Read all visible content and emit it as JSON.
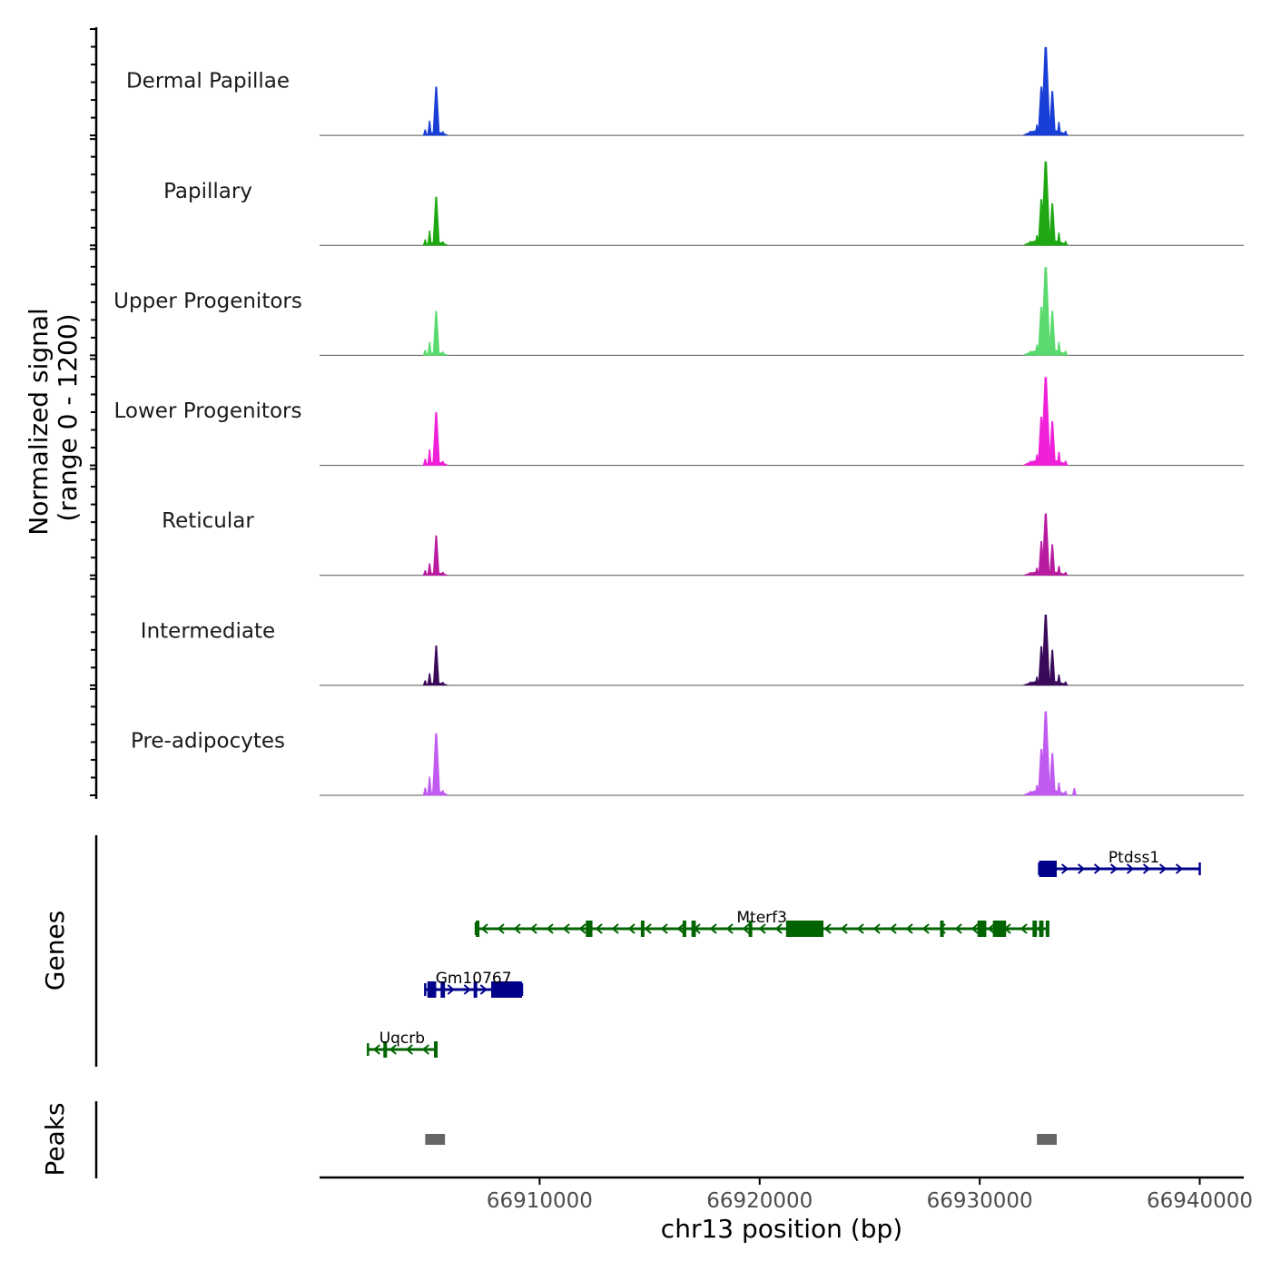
{
  "chart_data": {
    "type": "genome_coverage",
    "x_axis": {
      "title": "chr13 position (bp)",
      "range": [
        66900000,
        66942000
      ],
      "ticks": [
        66910000,
        66920000,
        66930000,
        66940000
      ],
      "tick_labels": [
        "66910000",
        "66920000",
        "66930000",
        "66940000"
      ]
    },
    "coverage_axis_title": [
      "Normalized signal",
      "(range 0 - 1200)"
    ],
    "signal_range": [
      0,
      1200
    ],
    "tracks": [
      {
        "name": "Dermal Papillae",
        "color": "#1a3fd6",
        "peak1_scale": 0.55,
        "peak2_scale": 1.0,
        "extra": []
      },
      {
        "name": "Papillary",
        "color": "#20a814",
        "peak1_scale": 0.55,
        "peak2_scale": 0.95,
        "extra": []
      },
      {
        "name": "Upper Progenitors",
        "color": "#5ada6e",
        "peak1_scale": 0.5,
        "peak2_scale": 1.0,
        "extra": []
      },
      {
        "name": "Lower Progenitors",
        "color": "#f020d8",
        "peak1_scale": 0.6,
        "peak2_scale": 1.0,
        "extra": []
      },
      {
        "name": "Reticular",
        "color": "#b81aa0",
        "peak1_scale": 0.45,
        "peak2_scale": 0.7,
        "extra": []
      },
      {
        "name": "Intermediate",
        "color": "#3a0a5a",
        "peak1_scale": 0.45,
        "peak2_scale": 0.8,
        "extra": []
      },
      {
        "name": "Pre-adipocytes",
        "color": "#c05af0",
        "peak1_scale": 0.7,
        "peak2_scale": 0.95,
        "extra": [
          {
            "pos": 66934300,
            "h": 0.08
          }
        ]
      }
    ],
    "signal_peaks": [
      {
        "center": 66905300,
        "subpeaks": [
          [
            66904800,
            0.12
          ],
          [
            66905000,
            0.3
          ],
          [
            66905300,
            1.0
          ],
          [
            66905600,
            0.08
          ]
        ]
      },
      {
        "center": 66933000,
        "subpeaks": [
          [
            66932300,
            0.05
          ],
          [
            66932600,
            0.12
          ],
          [
            66932800,
            0.55
          ],
          [
            66933000,
            1.0
          ],
          [
            66933300,
            0.5
          ],
          [
            66933600,
            0.15
          ],
          [
            66933900,
            0.05
          ]
        ]
      }
    ],
    "genes_panel_title": "Genes",
    "genes": [
      {
        "name": "Ptdss1",
        "strand": "+",
        "start": 66932700,
        "end": 66940000,
        "row": 0,
        "color": "#00008b",
        "exons": [
          [
            66932700,
            66933500
          ]
        ],
        "thin": [
          [
            66932700,
            66932800
          ]
        ]
      },
      {
        "name": "Mterf3",
        "strand": "-",
        "start": 66907100,
        "end": 66933100,
        "row": 1,
        "color": "#006400",
        "exons": [
          [
            66907100,
            66907200
          ],
          [
            66912100,
            66912400
          ],
          [
            66914600,
            66914700
          ],
          [
            66916500,
            66916600
          ],
          [
            66916900,
            66917100
          ],
          [
            66919500,
            66919600
          ],
          [
            66921200,
            66922900
          ],
          [
            66928200,
            66928300
          ],
          [
            66929900,
            66930300
          ],
          [
            66930600,
            66931200
          ],
          [
            66932400,
            66932600
          ],
          [
            66932700,
            66932900
          ],
          [
            66933000,
            66933100
          ]
        ],
        "thin": []
      },
      {
        "name": "Gm10767",
        "strand": "+",
        "start": 66904800,
        "end": 66909200,
        "row": 2,
        "color": "#00008b",
        "exons": [
          [
            66904900,
            66905300
          ],
          [
            66905500,
            66905700
          ],
          [
            66907000,
            66907100
          ],
          [
            66907800,
            66909200
          ]
        ],
        "thin": [
          [
            66904800,
            66904900
          ]
        ]
      },
      {
        "name": "Uqcrb",
        "strand": "-",
        "start": 66902200,
        "end": 66905300,
        "row": 3,
        "color": "#006400",
        "exons": [
          [
            66902900,
            66903000
          ],
          [
            66905200,
            66905300
          ]
        ],
        "thin": []
      }
    ],
    "peaks_panel_title": "Peaks",
    "peak_regions": [
      {
        "start": 66904800,
        "end": 66905700,
        "color": "#666666"
      },
      {
        "start": 66932600,
        "end": 66933500,
        "color": "#666666"
      }
    ]
  }
}
